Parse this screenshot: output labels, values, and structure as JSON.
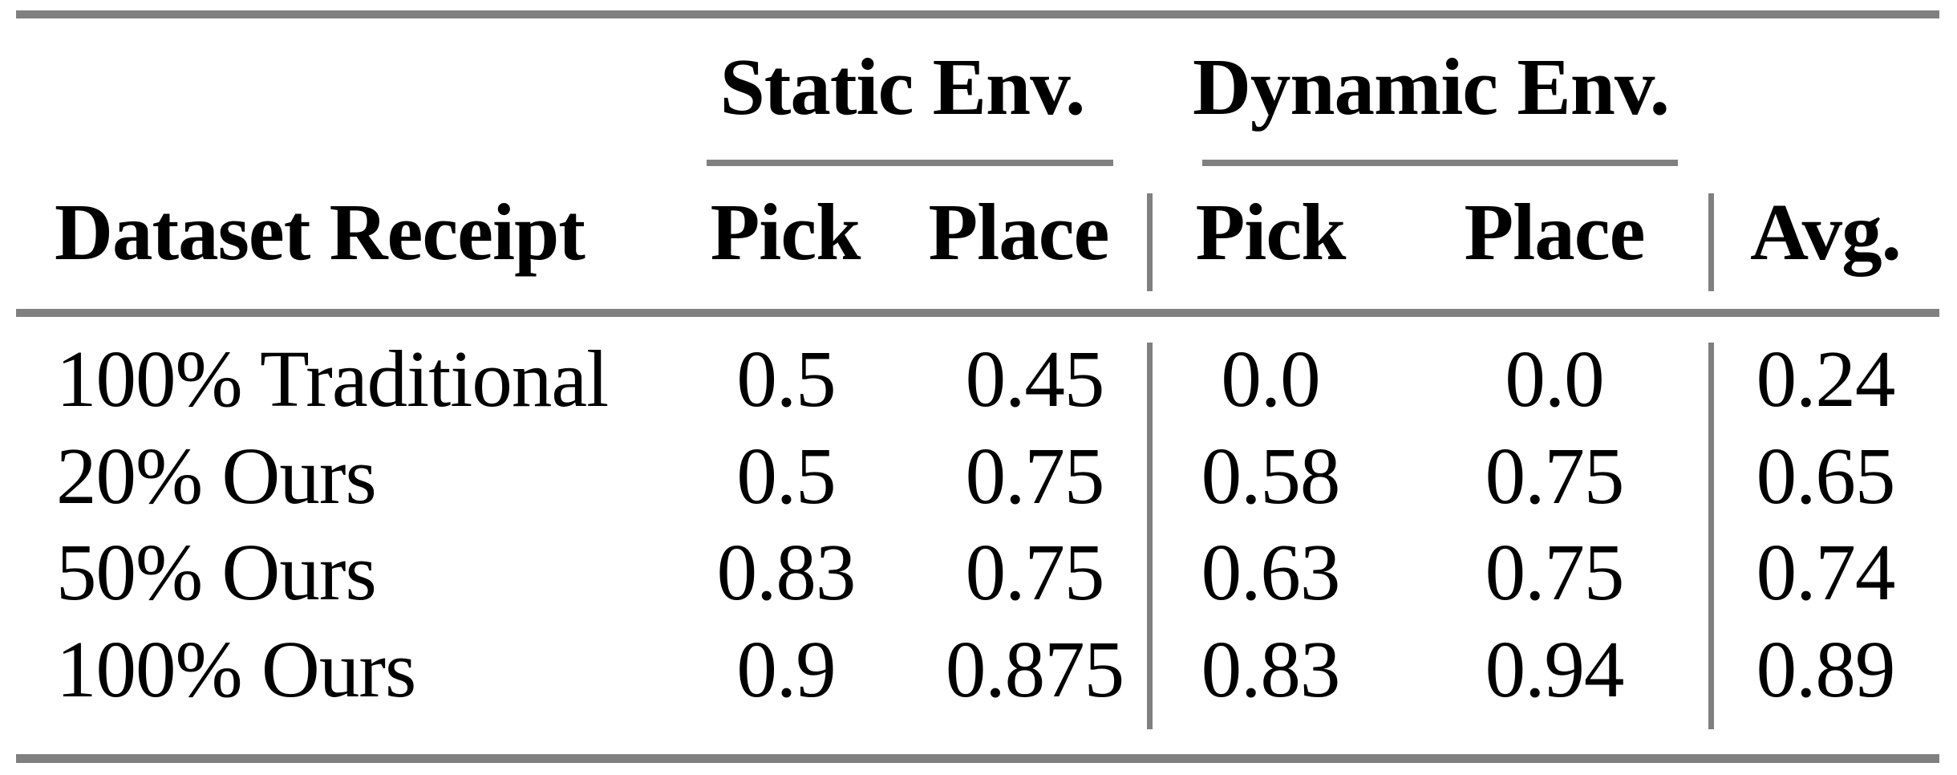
{
  "table": {
    "group_headers": {
      "static": "Static Env.",
      "dynamic": "Dynamic Env."
    },
    "column_headers": {
      "dataset": "Dataset Receipt",
      "static_pick": "Pick",
      "static_place": "Place",
      "dynamic_pick": "Pick",
      "dynamic_place": "Place",
      "avg": "Avg."
    },
    "rows": [
      {
        "label": "100% Traditional",
        "static_pick": "0.5",
        "static_place": "0.45",
        "dynamic_pick": "0.0",
        "dynamic_place": "0.0",
        "avg": "0.24"
      },
      {
        "label": "20% Ours",
        "static_pick": "0.5",
        "static_place": "0.75",
        "dynamic_pick": "0.58",
        "dynamic_place": "0.75",
        "avg": "0.65"
      },
      {
        "label": "50% Ours",
        "static_pick": "0.83",
        "static_place": "0.75",
        "dynamic_pick": "0.63",
        "dynamic_place": "0.75",
        "avg": "0.74"
      },
      {
        "label": "100% Ours",
        "static_pick": "0.9",
        "static_place": "0.875",
        "dynamic_pick": "0.83",
        "dynamic_place": "0.94",
        "avg": "0.89"
      }
    ]
  },
  "colors": {
    "rule_gray": "#808080",
    "text": "#000000",
    "background": "#ffffff"
  },
  "chart_data": {
    "type": "table",
    "column_groups": [
      "Static Env.",
      "Dynamic Env."
    ],
    "columns": [
      "Dataset Receipt",
      "Static Env. Pick",
      "Static Env. Place",
      "Dynamic Env. Pick",
      "Dynamic Env. Place",
      "Avg."
    ],
    "rows": [
      [
        "100% Traditional",
        0.5,
        0.45,
        0.0,
        0.0,
        0.24
      ],
      [
        "20% Ours",
        0.5,
        0.75,
        0.58,
        0.75,
        0.65
      ],
      [
        "50% Ours",
        0.83,
        0.75,
        0.63,
        0.75,
        0.74
      ],
      [
        "100% Ours",
        0.9,
        0.875,
        0.83,
        0.94,
        0.89
      ]
    ]
  }
}
